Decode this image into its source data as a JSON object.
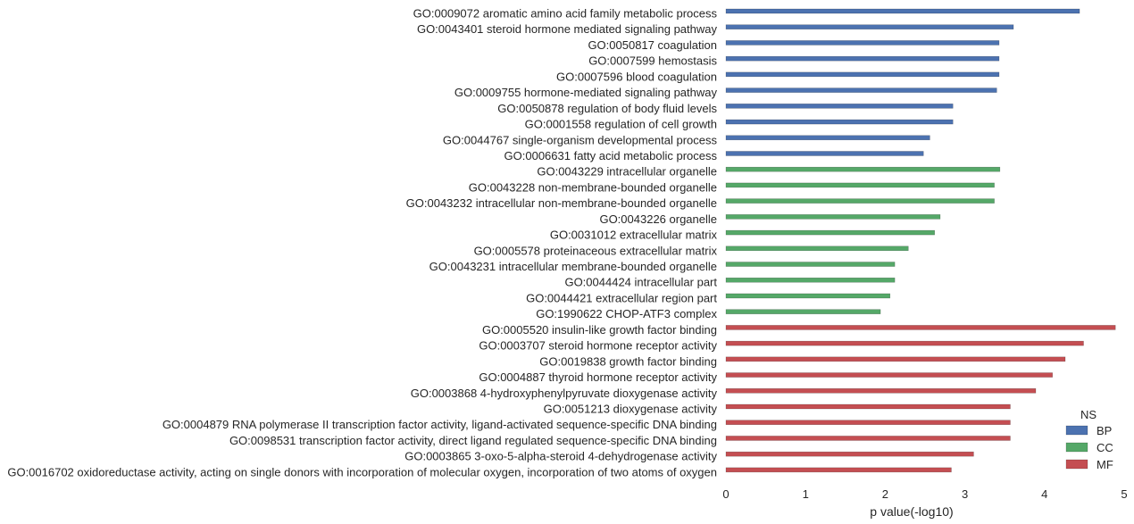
{
  "chart_data": {
    "type": "bar",
    "orientation": "horizontal",
    "xlabel": "p value(-log10)",
    "ylabel": "",
    "xlim": [
      0,
      5
    ],
    "xticks": [
      "0",
      "1",
      "2",
      "3",
      "4",
      "5"
    ],
    "grid": false,
    "legend": {
      "title": "NS",
      "placement": "bottom-right",
      "entries": [
        {
          "name": "BP",
          "color": "#4c72b0"
        },
        {
          "name": "CC",
          "color": "#55a868"
        },
        {
          "name": "MF",
          "color": "#c44e52"
        }
      ]
    },
    "bars": [
      {
        "label": "GO:0009072 aromatic amino acid family metabolic process",
        "value": 4.44,
        "group": "BP"
      },
      {
        "label": "GO:0043401 steroid hormone mediated signaling pathway",
        "value": 3.61,
        "group": "BP"
      },
      {
        "label": "GO:0050817 coagulation",
        "value": 3.43,
        "group": "BP"
      },
      {
        "label": "GO:0007599 hemostasis",
        "value": 3.43,
        "group": "BP"
      },
      {
        "label": "GO:0007596 blood coagulation",
        "value": 3.43,
        "group": "BP"
      },
      {
        "label": "GO:0009755 hormone-mediated signaling pathway",
        "value": 3.4,
        "group": "BP"
      },
      {
        "label": "GO:0050878 regulation of body fluid levels",
        "value": 2.85,
        "group": "BP"
      },
      {
        "label": "GO:0001558 regulation of cell growth",
        "value": 2.85,
        "group": "BP"
      },
      {
        "label": "GO:0044767 single-organism developmental process",
        "value": 2.56,
        "group": "BP"
      },
      {
        "label": "GO:0006631 fatty acid metabolic process",
        "value": 2.48,
        "group": "BP"
      },
      {
        "label": "GO:0043229 intracellular organelle",
        "value": 3.44,
        "group": "CC"
      },
      {
        "label": "GO:0043228 non-membrane-bounded organelle",
        "value": 3.37,
        "group": "CC"
      },
      {
        "label": "GO:0043232 intracellular non-membrane-bounded organelle",
        "value": 3.37,
        "group": "CC"
      },
      {
        "label": "GO:0043226 organelle",
        "value": 2.69,
        "group": "CC"
      },
      {
        "label": "GO:0031012 extracellular matrix",
        "value": 2.62,
        "group": "CC"
      },
      {
        "label": "GO:0005578 proteinaceous extracellular matrix",
        "value": 2.29,
        "group": "CC"
      },
      {
        "label": "GO:0043231 intracellular membrane-bounded organelle",
        "value": 2.12,
        "group": "CC"
      },
      {
        "label": "GO:0044424 intracellular part",
        "value": 2.12,
        "group": "CC"
      },
      {
        "label": "GO:0044421 extracellular region part",
        "value": 2.06,
        "group": "CC"
      },
      {
        "label": "GO:1990622 CHOP-ATF3 complex",
        "value": 1.94,
        "group": "CC"
      },
      {
        "label": "GO:0005520 insulin-like growth factor binding",
        "value": 4.89,
        "group": "MF"
      },
      {
        "label": "GO:0003707 steroid hormone receptor activity",
        "value": 4.49,
        "group": "MF"
      },
      {
        "label": "GO:0019838 growth factor binding",
        "value": 4.26,
        "group": "MF"
      },
      {
        "label": "GO:0004887 thyroid hormone receptor activity",
        "value": 4.1,
        "group": "MF"
      },
      {
        "label": "GO:0003868 4-hydroxyphenylpyruvate dioxygenase activity",
        "value": 3.89,
        "group": "MF"
      },
      {
        "label": "GO:0051213 dioxygenase activity",
        "value": 3.57,
        "group": "MF"
      },
      {
        "label": "GO:0004879 RNA polymerase II transcription factor activity, ligand-activated sequence-specific DNA binding",
        "value": 3.57,
        "group": "MF"
      },
      {
        "label": "GO:0098531 transcription factor activity, direct ligand regulated sequence-specific DNA binding",
        "value": 3.57,
        "group": "MF"
      },
      {
        "label": "GO:0003865 3-oxo-5-alpha-steroid 4-dehydrogenase activity",
        "value": 3.11,
        "group": "MF"
      },
      {
        "label": "GO:0016702 oxidoreductase activity, acting on single donors with incorporation of molecular oxygen, incorporation of two atoms of oxygen",
        "value": 2.83,
        "group": "MF"
      }
    ]
  }
}
